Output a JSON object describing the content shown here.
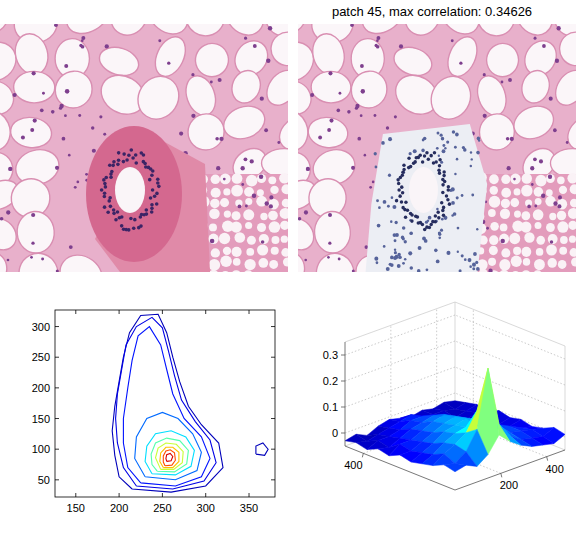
{
  "figure_title": "patch 45, max correlation: 0.34626",
  "chart_data": [
    {
      "type": "contour",
      "xlim": [
        126,
        380
      ],
      "ylim": [
        22,
        327
      ],
      "xticks": [
        150,
        200,
        250,
        300,
        350
      ],
      "yticks": [
        50,
        100,
        150,
        200,
        250,
        300
      ],
      "clim": [
        0,
        0.35
      ],
      "contours": [
        {
          "level": 0.02,
          "x": [
            215,
            260,
            300,
            320,
            315,
            295,
            280,
            270,
            262,
            255,
            245,
            225,
            212,
            205,
            200,
            195,
            192,
            195,
            200,
            215
          ],
          "y": [
            35,
            30,
            40,
            70,
            110,
            140,
            170,
            210,
            250,
            290,
            320,
            318,
            290,
            250,
            210,
            170,
            130,
            90,
            55,
            35
          ]
        },
        {
          "level": 0.02,
          "x": [
            358,
            368,
            372,
            366,
            358,
            358
          ],
          "y": [
            92,
            90,
            100,
            110,
            105,
            92
          ]
        },
        {
          "level": 0.035,
          "x": [
            220,
            262,
            298,
            312,
            305,
            288,
            272,
            264,
            257,
            250,
            238,
            220,
            208,
            203,
            198,
            196,
            198,
            205,
            220
          ],
          "y": [
            40,
            35,
            48,
            78,
            115,
            145,
            180,
            220,
            260,
            298,
            315,
            300,
            270,
            230,
            190,
            150,
            110,
            70,
            40
          ]
        },
        {
          "level": 0.05,
          "x": [
            225,
            265,
            295,
            305,
            295,
            275,
            262,
            255,
            248,
            235,
            222,
            215,
            210,
            205,
            205,
            210,
            225
          ],
          "y": [
            45,
            40,
            55,
            85,
            120,
            150,
            190,
            230,
            270,
            300,
            285,
            245,
            200,
            150,
            110,
            70,
            45
          ]
        },
        {
          "level": 0.08,
          "x": [
            230,
            265,
            290,
            295,
            285,
            268,
            250,
            232,
            220,
            218,
            230
          ],
          "y": [
            55,
            50,
            65,
            95,
            125,
            150,
            160,
            150,
            120,
            85,
            55
          ]
        },
        {
          "level": 0.12,
          "x": [
            238,
            265,
            283,
            287,
            277,
            260,
            242,
            232,
            230,
            238
          ],
          "y": [
            60,
            58,
            72,
            98,
            120,
            130,
            125,
            105,
            80,
            60
          ]
        },
        {
          "level": 0.16,
          "x": [
            244,
            264,
            278,
            280,
            270,
            255,
            242,
            237,
            238,
            244
          ],
          "y": [
            64,
            63,
            76,
            98,
            114,
            118,
            110,
            92,
            75,
            64
          ]
        },
        {
          "level": 0.2,
          "x": [
            248,
            263,
            273,
            274,
            266,
            254,
            245,
            242,
            248
          ],
          "y": [
            67,
            67,
            78,
            96,
            108,
            110,
            102,
            86,
            67
          ]
        },
        {
          "level": 0.24,
          "x": [
            251,
            262,
            269,
            269,
            262,
            254,
            248,
            247,
            251
          ],
          "y": [
            70,
            70,
            80,
            95,
            103,
            103,
            94,
            80,
            70
          ]
        },
        {
          "level": 0.28,
          "x": [
            253,
            261,
            265,
            264,
            259,
            254,
            251,
            251,
            253
          ],
          "y": [
            73,
            74,
            82,
            94,
            99,
            97,
            89,
            79,
            73
          ]
        },
        {
          "level": 0.32,
          "x": [
            255,
            260,
            262,
            259,
            255,
            254,
            255
          ],
          "y": [
            80,
            81,
            88,
            93,
            91,
            85,
            80
          ]
        }
      ]
    },
    {
      "type": "surface",
      "xlim": [
        0,
        480
      ],
      "ylim": [
        0,
        480
      ],
      "zlim": [
        -0.05,
        0.35
      ],
      "xticks": [
        200,
        400
      ],
      "yticks": [
        400
      ],
      "zticks": [
        0,
        0.1,
        0.2,
        0.3
      ],
      "grid": true,
      "x": [
        0,
        48,
        96,
        144,
        192,
        240,
        288,
        336,
        384,
        432,
        480
      ],
      "y": [
        0,
        48,
        96,
        144,
        192,
        240,
        288,
        336,
        384,
        432,
        480
      ],
      "z": [
        [
          0.02,
          0.03,
          0.01,
          0.04,
          0.1,
          0.06,
          0.03,
          0.01,
          0.0,
          -0.01,
          0.01
        ],
        [
          0.03,
          0.02,
          0.05,
          0.12,
          0.34,
          0.11,
          0.05,
          0.02,
          0.01,
          0.0,
          0.02
        ],
        [
          0.01,
          0.04,
          0.06,
          0.09,
          0.16,
          0.08,
          0.06,
          0.03,
          0.02,
          0.01,
          0.0
        ],
        [
          0.0,
          0.02,
          0.05,
          0.07,
          0.08,
          0.07,
          0.05,
          0.04,
          0.02,
          0.0,
          -0.01
        ],
        [
          -0.01,
          0.01,
          0.03,
          0.06,
          0.07,
          0.08,
          0.06,
          0.03,
          0.01,
          -0.01,
          0.0
        ],
        [
          0.0,
          0.0,
          0.02,
          0.04,
          0.06,
          0.07,
          0.05,
          0.02,
          0.0,
          -0.02,
          -0.01
        ],
        [
          -0.02,
          0.01,
          0.01,
          0.03,
          0.05,
          0.06,
          0.04,
          0.01,
          -0.01,
          -0.02,
          0.0
        ],
        [
          -0.01,
          -0.02,
          0.0,
          0.02,
          0.03,
          0.04,
          0.03,
          0.0,
          -0.02,
          -0.01,
          -0.02
        ],
        [
          -0.03,
          -0.01,
          -0.01,
          0.0,
          0.02,
          0.02,
          0.01,
          -0.01,
          -0.03,
          -0.02,
          -0.01
        ],
        [
          -0.02,
          -0.03,
          -0.02,
          -0.01,
          0.0,
          0.01,
          -0.01,
          -0.02,
          -0.02,
          -0.03,
          -0.02
        ],
        [
          -0.03,
          -0.02,
          -0.04,
          -0.02,
          -0.01,
          -0.02,
          -0.03,
          -0.02,
          -0.03,
          -0.02,
          -0.03
        ]
      ]
    }
  ]
}
